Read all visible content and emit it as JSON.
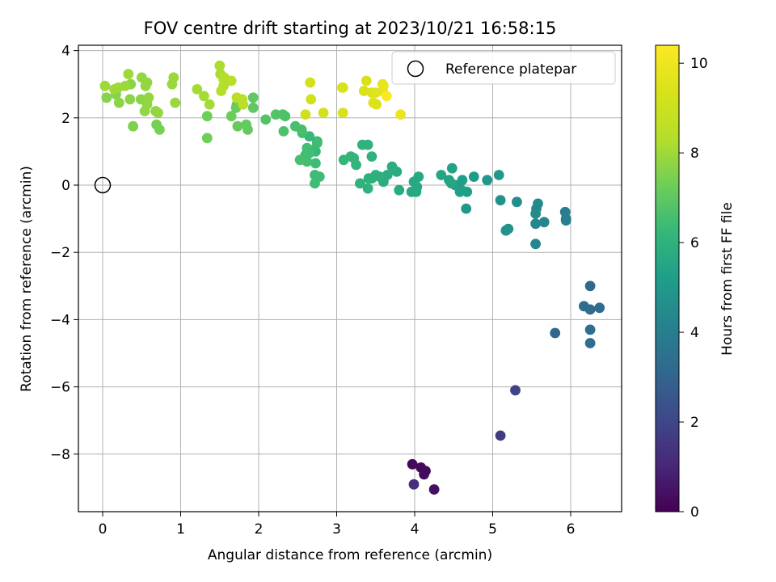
{
  "chart_data": {
    "type": "scatter",
    "title": "FOV centre drift starting at 2023/10/21 16:58:15",
    "xlabel": "Angular distance from reference (arcmin)",
    "ylabel": "Rotation from reference (arcmin)",
    "xlim": [
      -0.32,
      6.68
    ],
    "ylim": [
      -9.7,
      4.2
    ],
    "xticks": [
      0,
      1,
      2,
      3,
      4,
      5,
      6
    ],
    "yticks": [
      4,
      2,
      0,
      -2,
      -4,
      -6,
      -8
    ],
    "xtick_labels": [
      "0",
      "1",
      "2",
      "3",
      "4",
      "5",
      "6"
    ],
    "ytick_labels": [
      "4",
      "2",
      "0",
      "−2",
      "−4",
      "−6",
      "−8"
    ],
    "grid": true,
    "legend": {
      "location": "upper right",
      "entries": [
        "Reference platepar"
      ]
    },
    "reference_point": {
      "x": 0,
      "y": 0,
      "label": "Reference platepar"
    },
    "colorbar": {
      "label": "Hours from first FF file",
      "range": [
        0,
        10.4
      ],
      "ticks": [
        0,
        2,
        4,
        6,
        8,
        10
      ],
      "tick_labels": [
        "0",
        "2",
        "4",
        "6",
        "8",
        "10"
      ],
      "colormap": "viridis"
    },
    "points_xyc": [
      [
        3.97,
        -8.3,
        0.2
      ],
      [
        4.08,
        -8.4,
        0.2
      ],
      [
        4.14,
        -8.5,
        0.3
      ],
      [
        4.12,
        -8.6,
        0.3
      ],
      [
        4.25,
        -9.05,
        0.4
      ],
      [
        3.99,
        -8.9,
        1.3
      ],
      [
        5.1,
        -7.45,
        1.7
      ],
      [
        5.29,
        -6.1,
        1.9
      ],
      [
        5.8,
        -4.4,
        3.1
      ],
      [
        6.25,
        -3.0,
        3.2
      ],
      [
        6.17,
        -3.6,
        3.3
      ],
      [
        6.25,
        -3.7,
        3.3
      ],
      [
        6.37,
        -3.65,
        3.3
      ],
      [
        6.25,
        -4.3,
        3.4
      ],
      [
        6.25,
        -4.7,
        3.4
      ],
      [
        5.93,
        -0.8,
        4.0
      ],
      [
        5.94,
        -1.0,
        4.0
      ],
      [
        5.94,
        -1.05,
        4.1
      ],
      [
        5.66,
        -1.1,
        4.3
      ],
      [
        5.55,
        -1.15,
        4.3
      ],
      [
        5.55,
        -1.75,
        4.3
      ],
      [
        5.58,
        -0.55,
        4.5
      ],
      [
        5.56,
        -0.7,
        4.5
      ],
      [
        5.55,
        -0.85,
        4.5
      ],
      [
        5.31,
        -0.5,
        4.6
      ],
      [
        5.1,
        -0.45,
        4.8
      ],
      [
        5.2,
        -1.3,
        4.8
      ],
      [
        5.17,
        -1.35,
        4.8
      ],
      [
        4.66,
        -0.7,
        5.0
      ],
      [
        4.93,
        0.15,
        5.0
      ],
      [
        5.08,
        0.3,
        5.0
      ],
      [
        4.76,
        0.25,
        5.1
      ],
      [
        4.61,
        0.15,
        5.2
      ],
      [
        4.67,
        -0.2,
        5.2
      ],
      [
        4.6,
        -0.15,
        5.3
      ],
      [
        4.58,
        -0.2,
        5.3
      ],
      [
        4.52,
        0.0,
        5.3
      ],
      [
        4.44,
        0.15,
        5.4
      ],
      [
        4.48,
        0.5,
        5.4
      ],
      [
        4.34,
        0.3,
        5.5
      ],
      [
        4.47,
        0.05,
        5.5
      ],
      [
        3.99,
        0.1,
        5.6
      ],
      [
        3.96,
        -0.2,
        5.6
      ],
      [
        4.02,
        -0.2,
        5.6
      ],
      [
        4.03,
        -0.05,
        5.6
      ],
      [
        4.05,
        0.25,
        5.6
      ],
      [
        3.8,
        -0.15,
        5.7
      ],
      [
        3.77,
        0.4,
        5.7
      ],
      [
        3.71,
        0.55,
        5.8
      ],
      [
        3.65,
        0.3,
        5.8
      ],
      [
        3.6,
        0.1,
        5.8
      ],
      [
        3.55,
        0.25,
        5.9
      ],
      [
        3.5,
        0.3,
        5.9
      ],
      [
        3.45,
        0.2,
        5.9
      ],
      [
        3.41,
        0.2,
        5.9
      ],
      [
        3.4,
        -0.1,
        6.0
      ],
      [
        3.3,
        0.05,
        6.0
      ],
      [
        3.45,
        0.85,
        6.0
      ],
      [
        3.4,
        1.2,
        6.0
      ],
      [
        3.33,
        1.2,
        6.0
      ],
      [
        3.22,
        0.8,
        6.1
      ],
      [
        3.25,
        0.6,
        6.1
      ],
      [
        3.18,
        0.85,
        6.1
      ],
      [
        3.09,
        0.75,
        6.2
      ],
      [
        2.75,
        1.3,
        6.3
      ],
      [
        2.73,
        1.0,
        6.3
      ],
      [
        2.7,
        1.05,
        6.3
      ],
      [
        2.65,
        1.45,
        6.3
      ],
      [
        2.75,
        1.25,
        6.4
      ],
      [
        2.73,
        0.65,
        6.4
      ],
      [
        2.72,
        0.3,
        6.4
      ],
      [
        2.72,
        0.05,
        6.4
      ],
      [
        2.78,
        0.25,
        6.4
      ],
      [
        2.6,
        0.9,
        6.5
      ],
      [
        2.62,
        0.7,
        6.5
      ],
      [
        2.62,
        1.1,
        6.5
      ],
      [
        2.65,
        0.95,
        6.5
      ],
      [
        2.56,
        1.55,
        6.5
      ],
      [
        2.53,
        0.75,
        6.6
      ],
      [
        2.47,
        1.75,
        6.6
      ],
      [
        2.55,
        1.65,
        6.6
      ],
      [
        2.31,
        2.1,
        6.7
      ],
      [
        2.32,
        1.6,
        6.7
      ],
      [
        2.34,
        2.05,
        6.7
      ],
      [
        2.22,
        2.1,
        6.8
      ],
      [
        2.09,
        1.95,
        6.8
      ],
      [
        1.93,
        2.3,
        7.0
      ],
      [
        1.93,
        2.6,
        7.0
      ],
      [
        1.86,
        1.65,
        7.1
      ],
      [
        1.84,
        1.8,
        7.1
      ],
      [
        1.73,
        1.75,
        7.1
      ],
      [
        1.71,
        2.3,
        7.2
      ],
      [
        1.72,
        2.4,
        7.2
      ],
      [
        1.65,
        2.05,
        7.2
      ],
      [
        1.34,
        1.4,
        7.3
      ],
      [
        1.34,
        2.05,
        7.3
      ],
      [
        0.73,
        1.65,
        7.4
      ],
      [
        0.69,
        1.8,
        7.4
      ],
      [
        0.39,
        1.75,
        7.5
      ],
      [
        0.05,
        2.6,
        7.6
      ],
      [
        0.17,
        2.7,
        7.6
      ],
      [
        0.21,
        2.45,
        7.7
      ],
      [
        0.35,
        2.55,
        7.7
      ],
      [
        0.36,
        3.0,
        7.7
      ],
      [
        0.49,
        2.55,
        7.7
      ],
      [
        0.54,
        2.2,
        7.8
      ],
      [
        0.5,
        3.2,
        7.8
      ],
      [
        0.55,
        2.95,
        7.8
      ],
      [
        0.57,
        3.05,
        7.8
      ],
      [
        0.57,
        2.4,
        7.8
      ],
      [
        0.59,
        2.6,
        7.8
      ],
      [
        0.68,
        2.2,
        7.8
      ],
      [
        0.71,
        2.15,
        7.8
      ],
      [
        0.89,
        3.0,
        7.9
      ],
      [
        0.91,
        3.2,
        7.9
      ],
      [
        0.93,
        2.45,
        7.9
      ],
      [
        0.03,
        2.95,
        8.0
      ],
      [
        0.15,
        2.85,
        8.0
      ],
      [
        0.2,
        2.9,
        8.0
      ],
      [
        0.33,
        3.3,
        8.0
      ],
      [
        0.29,
        2.95,
        8.0
      ],
      [
        1.21,
        2.85,
        8.1
      ],
      [
        1.3,
        2.65,
        8.1
      ],
      [
        1.37,
        2.4,
        8.1
      ],
      [
        1.5,
        3.55,
        8.2
      ],
      [
        1.51,
        3.3,
        8.2
      ],
      [
        1.55,
        3.15,
        8.3
      ],
      [
        1.56,
        3.2,
        8.3
      ],
      [
        1.6,
        3.1,
        8.3
      ],
      [
        1.55,
        2.95,
        8.3
      ],
      [
        1.52,
        2.8,
        8.3
      ],
      [
        1.65,
        3.1,
        8.4
      ],
      [
        1.72,
        2.6,
        8.4
      ],
      [
        1.79,
        2.55,
        8.5
      ],
      [
        1.8,
        2.4,
        8.5
      ],
      [
        2.6,
        2.1,
        9.1
      ],
      [
        2.67,
        2.55,
        9.2
      ],
      [
        2.66,
        3.05,
        9.2
      ],
      [
        2.83,
        2.15,
        9.2
      ],
      [
        3.08,
        2.15,
        9.3
      ],
      [
        3.08,
        2.9,
        9.3
      ],
      [
        3.07,
        2.9,
        9.3
      ],
      [
        3.35,
        2.8,
        9.4
      ],
      [
        3.38,
        3.1,
        9.4
      ],
      [
        3.45,
        2.75,
        9.5
      ],
      [
        3.47,
        2.45,
        9.5
      ],
      [
        3.51,
        2.4,
        9.5
      ],
      [
        3.5,
        2.75,
        9.6
      ],
      [
        3.59,
        2.8,
        9.6
      ],
      [
        3.59,
        3.0,
        9.7
      ],
      [
        3.6,
        2.95,
        9.8
      ],
      [
        3.82,
        2.1,
        9.9
      ],
      [
        3.64,
        2.65,
        10.4
      ]
    ]
  }
}
